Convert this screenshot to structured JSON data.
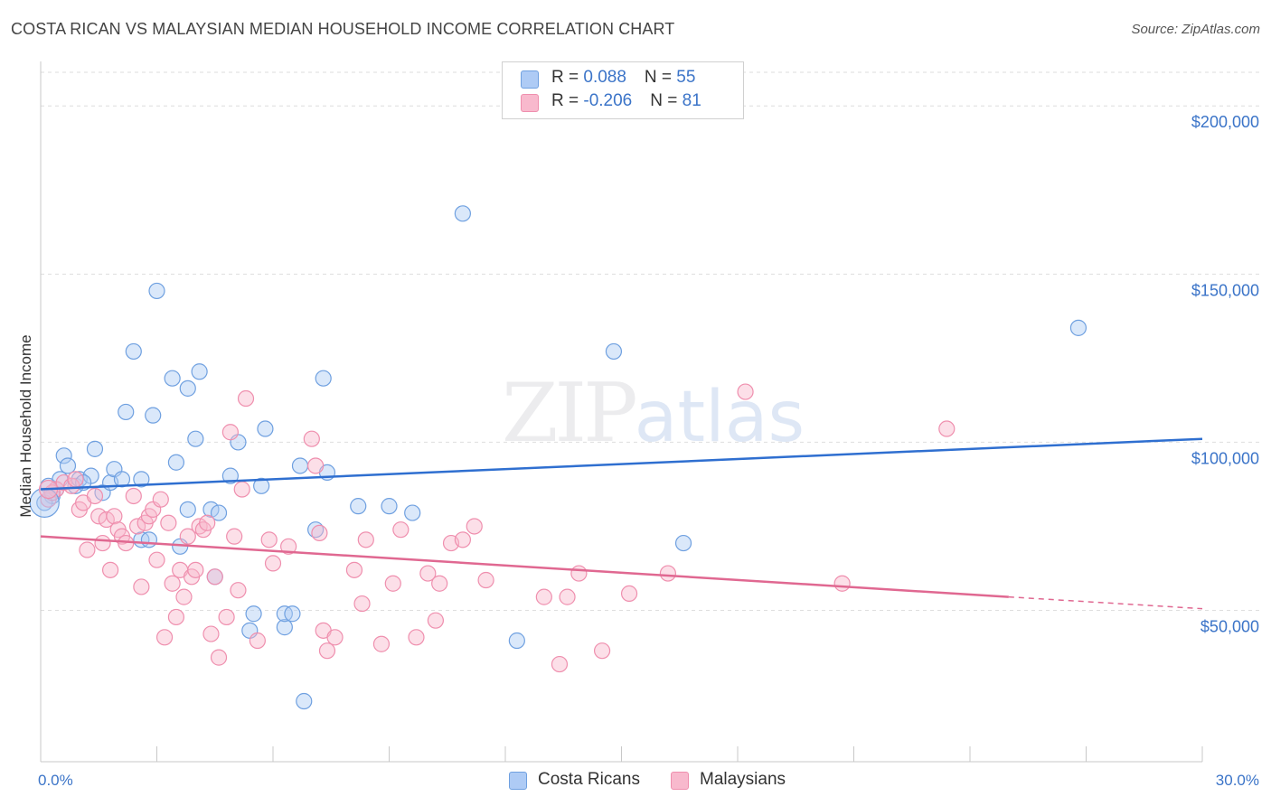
{
  "header": {
    "title": "COSTA RICAN VS MALAYSIAN MEDIAN HOUSEHOLD INCOME CORRELATION CHART",
    "source": "Source: ZipAtlas.com"
  },
  "watermark": {
    "zip": "ZIP",
    "atlas": "atlas"
  },
  "legend": {
    "rows": [
      {
        "r_label": "R = ",
        "r_value": "0.088",
        "n_label": "N = ",
        "n_value": "55",
        "color": "#aecbf5"
      },
      {
        "r_label": "R = ",
        "r_value": "-0.206",
        "n_label": "N = ",
        "n_value": "81",
        "color": "#f8b9cd"
      }
    ]
  },
  "bottom_legend": [
    {
      "label": "Costa Ricans",
      "color": "#aecbf5"
    },
    {
      "label": "Malaysians",
      "color": "#f8b9cd"
    }
  ],
  "chart_data": {
    "type": "scatter",
    "title": "COSTA RICAN VS MALAYSIAN MEDIAN HOUSEHOLD INCOME CORRELATION CHART",
    "xlabel": "",
    "ylabel": "Median Household Income",
    "xlim": [
      0,
      30
    ],
    "ylim": [
      5000,
      210000
    ],
    "x_ticks": [
      0,
      30
    ],
    "x_tick_labels": [
      "0.0%",
      "30.0%"
    ],
    "y_ticks": [
      50000,
      100000,
      150000,
      200000
    ],
    "y_tick_labels": [
      "$50,000",
      "$100,000",
      "$150,000",
      "$200,000"
    ],
    "grid": true,
    "legend_position": "top-center",
    "series": [
      {
        "name": "Costa Ricans",
        "color": "#6fa0e0",
        "fill": "#aecbf5",
        "trend": {
          "x": [
            0,
            30
          ],
          "y": [
            86000,
            101000
          ],
          "color": "#2f6fd0"
        },
        "points": [
          [
            0.2,
            87000
          ],
          [
            0.3,
            84000
          ],
          [
            0.5,
            89000
          ],
          [
            0.6,
            96000
          ],
          [
            0.7,
            93000
          ],
          [
            0.9,
            87000
          ],
          [
            1.0,
            89000
          ],
          [
            1.3,
            90000
          ],
          [
            1.4,
            98000
          ],
          [
            1.6,
            85000
          ],
          [
            1.8,
            88000
          ],
          [
            1.9,
            92000
          ],
          [
            2.1,
            89000
          ],
          [
            2.2,
            109000
          ],
          [
            2.4,
            127000
          ],
          [
            2.6,
            89000
          ],
          [
            2.6,
            71000
          ],
          [
            2.8,
            71000
          ],
          [
            2.9,
            108000
          ],
          [
            3.0,
            145000
          ],
          [
            3.4,
            119000
          ],
          [
            3.5,
            94000
          ],
          [
            3.6,
            69000
          ],
          [
            3.8,
            80000
          ],
          [
            3.8,
            116000
          ],
          [
            4.0,
            101000
          ],
          [
            4.1,
            121000
          ],
          [
            4.4,
            80000
          ],
          [
            4.5,
            60000
          ],
          [
            4.6,
            79000
          ],
          [
            4.9,
            90000
          ],
          [
            5.1,
            100000
          ],
          [
            5.4,
            44000
          ],
          [
            5.5,
            49000
          ],
          [
            5.7,
            87000
          ],
          [
            5.8,
            104000
          ],
          [
            6.3,
            45000
          ],
          [
            6.3,
            49000
          ],
          [
            6.5,
            49000
          ],
          [
            6.7,
            93000
          ],
          [
            6.8,
            23000
          ],
          [
            7.1,
            74000
          ],
          [
            7.4,
            91000
          ],
          [
            7.3,
            119000
          ],
          [
            8.2,
            81000
          ],
          [
            9.0,
            81000
          ],
          [
            9.6,
            79000
          ],
          [
            10.9,
            168000
          ],
          [
            12.3,
            41000
          ],
          [
            14.8,
            127000
          ],
          [
            16.6,
            70000
          ],
          [
            26.8,
            134000
          ],
          [
            0.1,
            82000
          ],
          [
            0.4,
            86000
          ],
          [
            1.1,
            88000
          ]
        ]
      },
      {
        "name": "Malaysians",
        "color": "#ef8fae",
        "fill": "#f8b9cd",
        "trend": {
          "x": [
            0,
            25
          ],
          "y": [
            72000,
            54000
          ],
          "dashed_to": [
            30,
            50500
          ],
          "color": "#e06891"
        },
        "points": [
          [
            0.2,
            83000
          ],
          [
            0.4,
            86000
          ],
          [
            0.6,
            88000
          ],
          [
            0.8,
            87000
          ],
          [
            1.0,
            80000
          ],
          [
            1.1,
            82000
          ],
          [
            1.2,
            68000
          ],
          [
            1.4,
            84000
          ],
          [
            1.5,
            78000
          ],
          [
            1.6,
            70000
          ],
          [
            1.7,
            77000
          ],
          [
            1.8,
            62000
          ],
          [
            1.9,
            78000
          ],
          [
            2.0,
            74000
          ],
          [
            2.1,
            72000
          ],
          [
            2.2,
            70000
          ],
          [
            2.4,
            84000
          ],
          [
            2.5,
            75000
          ],
          [
            2.6,
            57000
          ],
          [
            2.7,
            76000
          ],
          [
            2.8,
            78000
          ],
          [
            2.9,
            80000
          ],
          [
            3.0,
            65000
          ],
          [
            3.1,
            83000
          ],
          [
            3.2,
            42000
          ],
          [
            3.3,
            76000
          ],
          [
            3.4,
            58000
          ],
          [
            3.5,
            48000
          ],
          [
            3.6,
            62000
          ],
          [
            3.7,
            54000
          ],
          [
            3.8,
            72000
          ],
          [
            3.9,
            60000
          ],
          [
            4.0,
            62000
          ],
          [
            4.1,
            75000
          ],
          [
            4.2,
            74000
          ],
          [
            4.3,
            76000
          ],
          [
            4.4,
            43000
          ],
          [
            4.5,
            60000
          ],
          [
            4.6,
            36000
          ],
          [
            4.8,
            48000
          ],
          [
            4.9,
            103000
          ],
          [
            5.0,
            72000
          ],
          [
            5.1,
            56000
          ],
          [
            5.2,
            86000
          ],
          [
            5.3,
            113000
          ],
          [
            5.6,
            41000
          ],
          [
            5.9,
            71000
          ],
          [
            6.0,
            64000
          ],
          [
            6.4,
            69000
          ],
          [
            7.0,
            101000
          ],
          [
            7.1,
            93000
          ],
          [
            7.2,
            73000
          ],
          [
            7.3,
            44000
          ],
          [
            7.4,
            38000
          ],
          [
            7.6,
            42000
          ],
          [
            8.1,
            62000
          ],
          [
            8.3,
            52000
          ],
          [
            8.4,
            71000
          ],
          [
            8.8,
            40000
          ],
          [
            9.1,
            58000
          ],
          [
            9.3,
            74000
          ],
          [
            9.7,
            42000
          ],
          [
            10.0,
            61000
          ],
          [
            10.2,
            47000
          ],
          [
            10.3,
            58000
          ],
          [
            10.6,
            70000
          ],
          [
            10.9,
            71000
          ],
          [
            11.2,
            75000
          ],
          [
            11.5,
            59000
          ],
          [
            13.0,
            54000
          ],
          [
            13.4,
            34000
          ],
          [
            13.6,
            54000
          ],
          [
            13.9,
            61000
          ],
          [
            14.5,
            38000
          ],
          [
            15.2,
            55000
          ],
          [
            16.2,
            61000
          ],
          [
            18.2,
            115000
          ],
          [
            20.7,
            58000
          ],
          [
            23.4,
            104000
          ],
          [
            0.3,
            85000
          ],
          [
            0.9,
            89000
          ]
        ]
      }
    ]
  }
}
